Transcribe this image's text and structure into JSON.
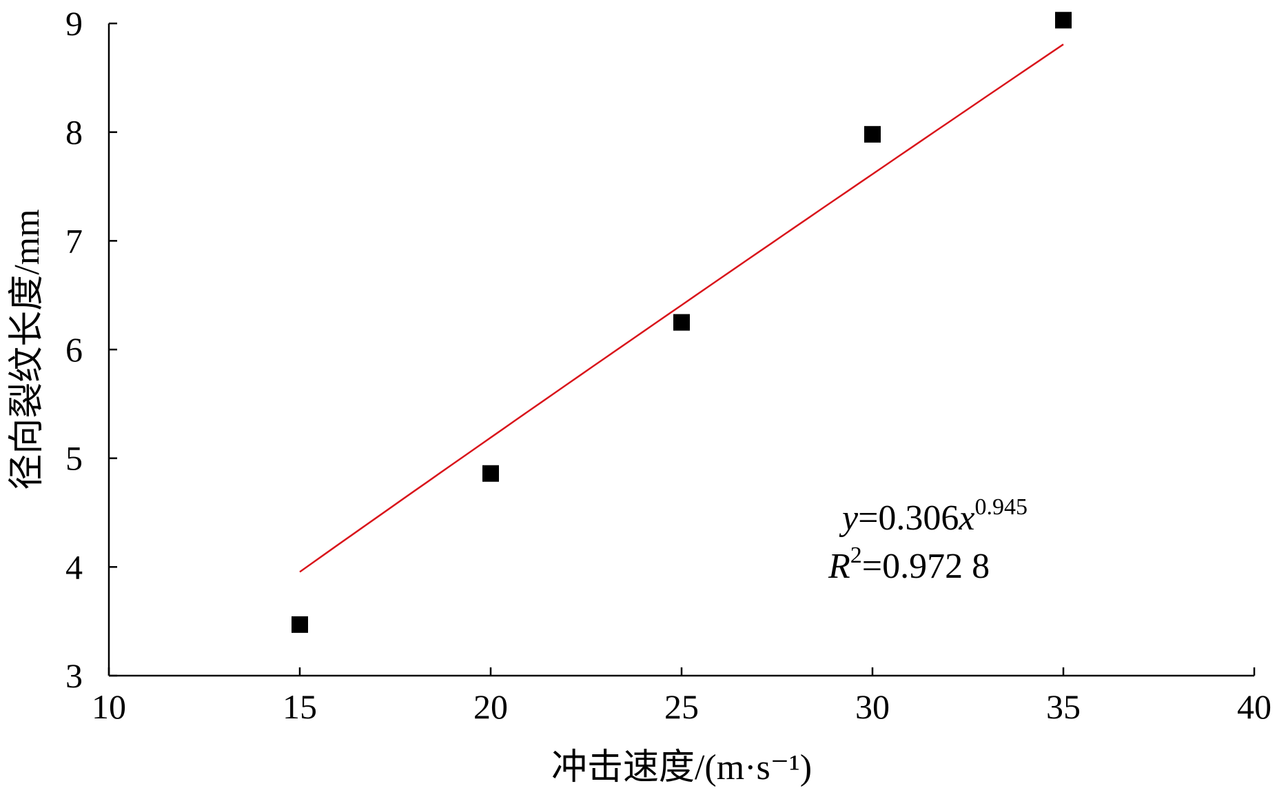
{
  "chart_data": {
    "type": "scatter",
    "xlabel": "冲击速度/(m·s⁻¹)",
    "ylabel": "径向裂纹长度/mm",
    "xlim": [
      10,
      40
    ],
    "ylim": [
      3,
      9
    ],
    "x_ticks": [
      "10",
      "15",
      "20",
      "25",
      "30",
      "35",
      "40"
    ],
    "y_ticks": [
      "3",
      "4",
      "5",
      "6",
      "7",
      "8",
      "9"
    ],
    "grid": false,
    "series": [
      {
        "marker": "square",
        "color": "#000000",
        "points": [
          {
            "x": 15,
            "y": 3.47
          },
          {
            "x": 20,
            "y": 4.86
          },
          {
            "x": 25,
            "y": 6.25
          },
          {
            "x": 30,
            "y": 7.98
          },
          {
            "x": 35,
            "y": 9.03
          }
        ]
      }
    ],
    "fit": {
      "type": "power",
      "a": 0.306,
      "b": 0.945,
      "x_range": [
        15,
        35
      ],
      "color": "#d9141b"
    },
    "annotations": {
      "equation": {
        "y_var": "y",
        "eq_text": "=0.306",
        "x_var": "x",
        "exponent": "0.945"
      },
      "r_squared": {
        "r_var": "R",
        "r_sup": "2",
        "value_text": "=0.972 8"
      }
    }
  }
}
